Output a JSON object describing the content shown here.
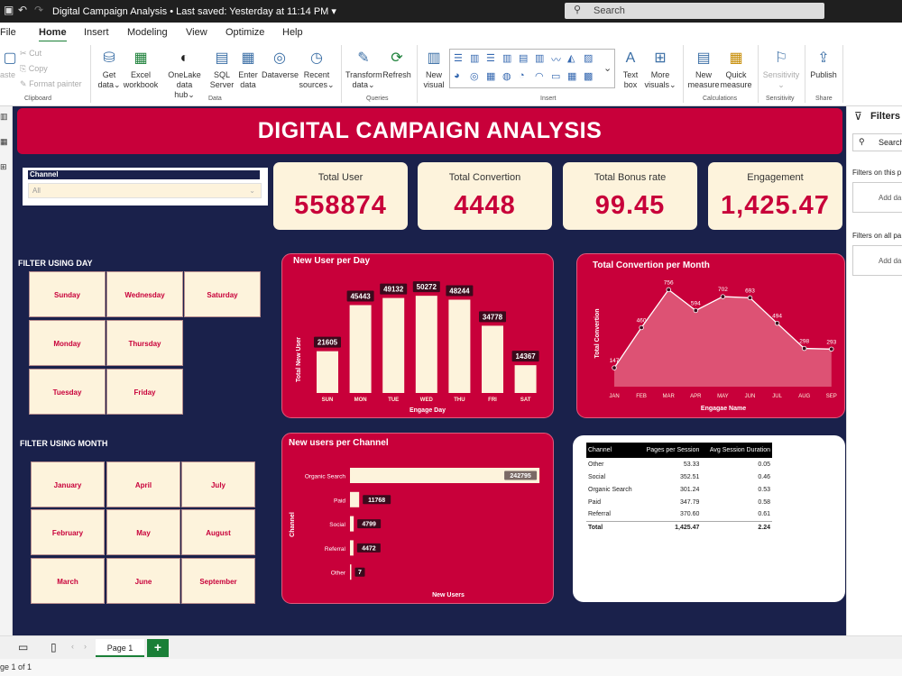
{
  "titlebar": {
    "title": "Digital Campaign Analysis",
    "saved": "Last saved: Yesterday at 11:14 PM",
    "search_placeholder": "Search"
  },
  "menu": [
    "File",
    "Home",
    "Insert",
    "Modeling",
    "View",
    "Optimize",
    "Help"
  ],
  "ribbon": {
    "clipboard": {
      "paste": "aste",
      "cut": "Cut",
      "copy": "Copy",
      "format_painter": "Format painter",
      "group": "Clipboard"
    },
    "data": {
      "get_data": [
        "Get",
        "data"
      ],
      "excel": [
        "Excel",
        "workbook"
      ],
      "onelake": [
        "OneLake data",
        "hub"
      ],
      "sql": [
        "SQL",
        "Server"
      ],
      "enter": [
        "Enter",
        "data"
      ],
      "dataverse": "Dataverse",
      "recent": [
        "Recent",
        "sources"
      ],
      "group": "Data"
    },
    "queries": {
      "transform": [
        "Transform",
        "data"
      ],
      "refresh": "Refresh",
      "group": "Queries"
    },
    "insert": {
      "new_visual": [
        "New",
        "visual"
      ],
      "text_box": [
        "Text",
        "box"
      ],
      "more_visuals": [
        "More",
        "visuals"
      ],
      "group": "Insert"
    },
    "calculations": {
      "new_measure": [
        "New",
        "measure"
      ],
      "quick_measure": [
        "Quick",
        "measure"
      ],
      "group": "Calculations"
    },
    "sensitivity": {
      "label": "Sensitivity",
      "group": "Sensitivity"
    },
    "share": {
      "publish": "Publish",
      "group": "Share"
    }
  },
  "report": {
    "title": "DIGITAL CAMPAIGN ANALYSIS",
    "kpis": [
      {
        "label": "Total User",
        "value": "558874"
      },
      {
        "label": "Total Convertion",
        "value": "4448"
      },
      {
        "label": "Total Bonus rate",
        "value": "99.45"
      },
      {
        "label": "Engagement",
        "value": "1,425.47"
      }
    ],
    "slicer": {
      "header": "Channel",
      "value": "All"
    },
    "day_filter": {
      "title": "FILTER USING DAY",
      "items": [
        "Sunday",
        "Wednesday",
        "Saturday",
        "Monday",
        "Thursday",
        "Tuesday",
        "Friday"
      ]
    },
    "month_filter": {
      "title": "FILTER USING MONTH",
      "items": [
        "January",
        "April",
        "July",
        "February",
        "May",
        "August",
        "March",
        "June",
        "September"
      ]
    },
    "table": {
      "headers": [
        "Channel",
        "Pages per Session",
        "Avg Session Duration"
      ],
      "rows": [
        [
          "Other",
          "53.33",
          "0.05"
        ],
        [
          "Social",
          "352.51",
          "0.46"
        ],
        [
          "Organic Search",
          "301.24",
          "0.53"
        ],
        [
          "Paid",
          "347.79",
          "0.58"
        ],
        [
          "Referral",
          "370.60",
          "0.61"
        ]
      ],
      "total": [
        "Total",
        "1,425.47",
        "2.24"
      ]
    }
  },
  "chart_data": [
    {
      "type": "bar",
      "title": "New User per Day",
      "categories": [
        "SUN",
        "MON",
        "TUE",
        "WED",
        "THU",
        "FRI",
        "SAT"
      ],
      "values": [
        21605,
        45443,
        49132,
        50272,
        48244,
        34778,
        14367
      ],
      "xlabel": "Engage Day",
      "ylabel": "Total New User",
      "ylim": [
        0,
        55000
      ],
      "grid": false,
      "colors": {
        "bar": "#fdf3dc",
        "background": "#c8003a"
      }
    },
    {
      "type": "area",
      "title": "Total Convertion per Month",
      "categories": [
        "JAN",
        "FEB",
        "MAR",
        "APR",
        "MAY",
        "JUN",
        "JUL",
        "AUG",
        "SEP"
      ],
      "values": [
        147,
        460,
        756,
        594,
        702,
        693,
        494,
        298,
        293
      ],
      "xlabel": "Engagae Name",
      "ylabel": "Total Convertion",
      "ylim": [
        0,
        850
      ],
      "grid": false,
      "colors": {
        "fill": "#e0607f",
        "line": "#ffffff"
      }
    },
    {
      "type": "bar",
      "orientation": "horizontal",
      "title": "New users per Channel",
      "categories": [
        "Organic Search",
        "Paid",
        "Social",
        "Referral",
        "Other"
      ],
      "values": [
        242795,
        11768,
        4799,
        4472,
        7
      ],
      "labels": [
        "242795",
        "11768",
        "4799",
        "4472",
        "7"
      ],
      "xlabel": "New Users",
      "ylabel": "Channel",
      "xlim": [
        0,
        245000
      ],
      "grid": false,
      "colors": {
        "bar": "#fdf3dc"
      }
    }
  ],
  "right_pane": {
    "title": "Filters",
    "search": "Search",
    "this_page": "Filters on this p",
    "add_data": "Add da",
    "all_pages": "Filters on all pa"
  },
  "bottom": {
    "page_tab": "Page 1",
    "add": "+",
    "status": "ge 1 of 1"
  }
}
